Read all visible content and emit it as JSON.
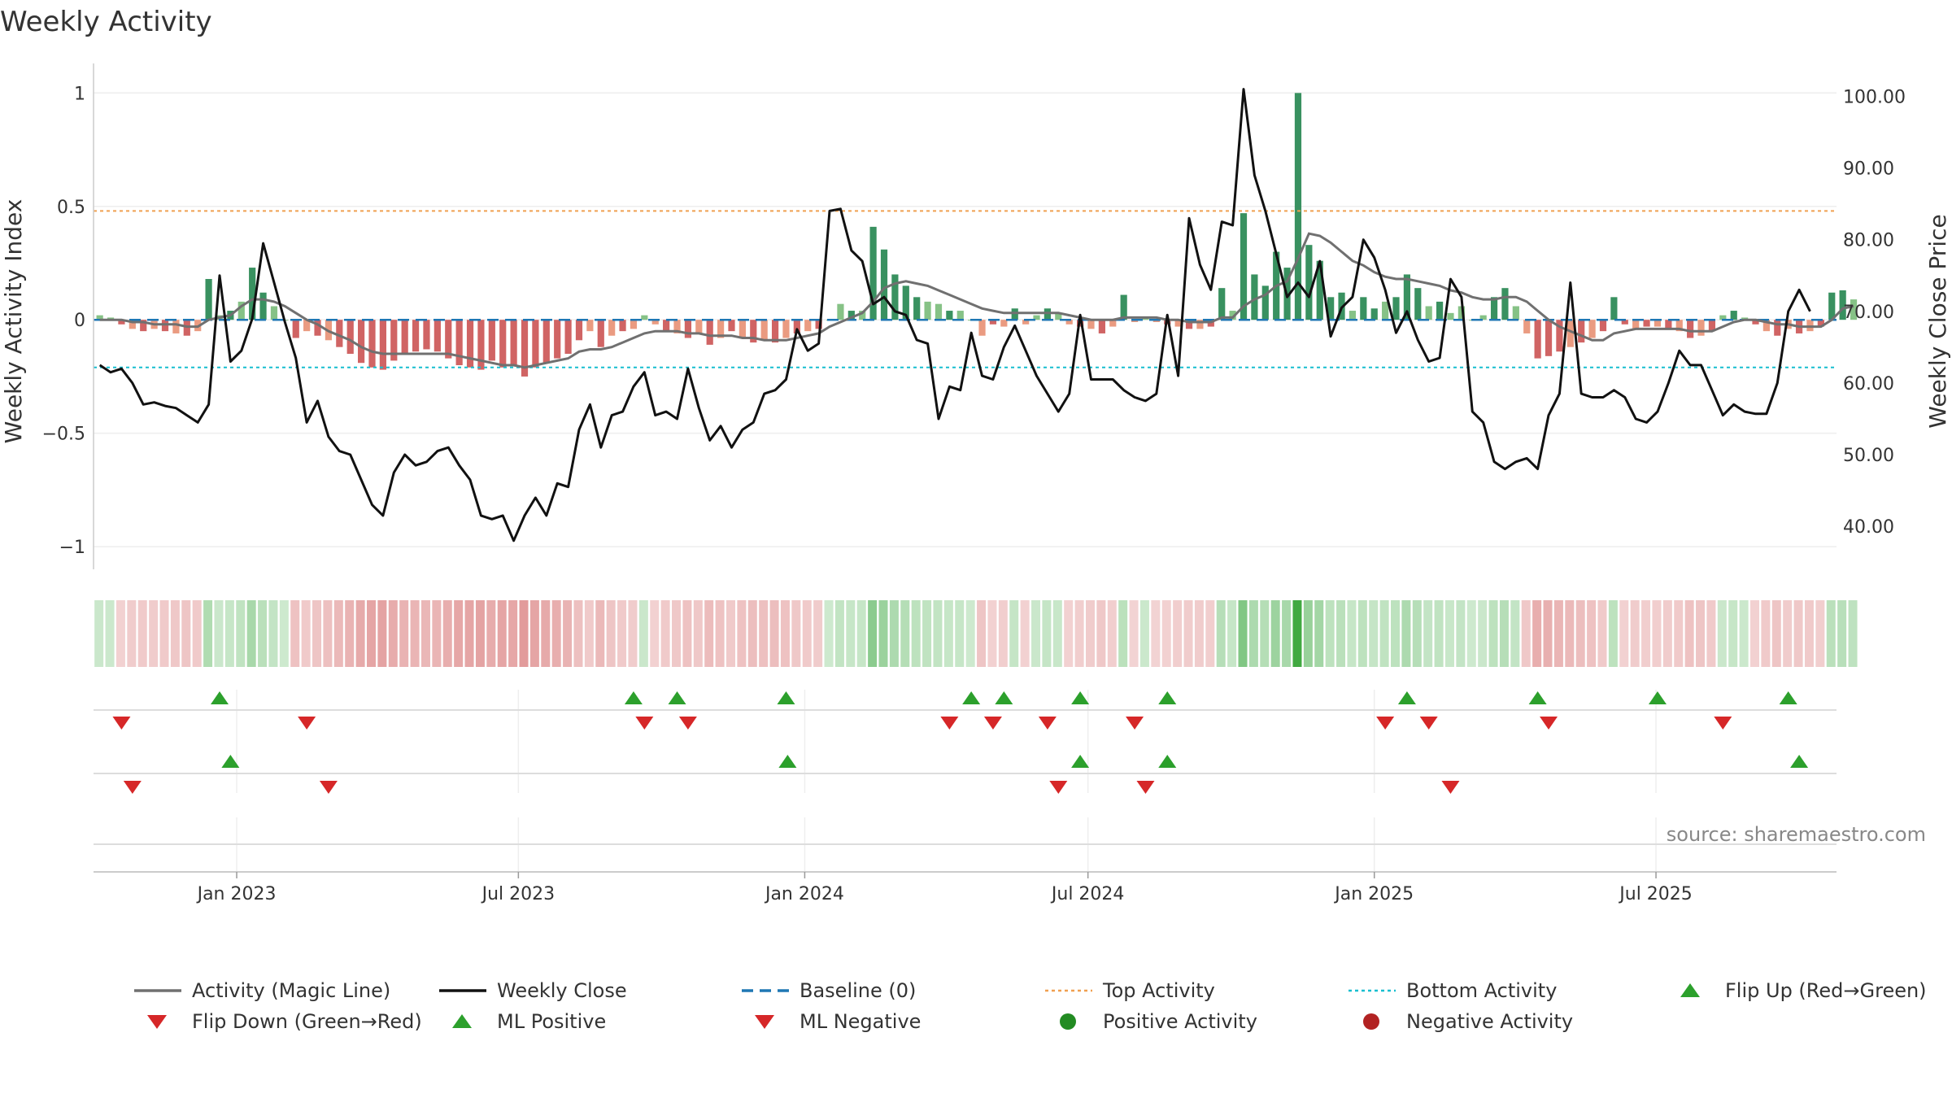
{
  "chart_data": {
    "type": "bar+line",
    "title": "Weekly Activity",
    "ylabel_left": "Weekly Activity Index",
    "ylabel_right": "Weekly Close Price",
    "ylim_left": [
      -1.1,
      1.08
    ],
    "yticks_left": [
      1,
      0.5,
      0,
      -0.5,
      -1
    ],
    "ytick_labels_left": [
      "1",
      "0.5",
      "0",
      "−0.5",
      "−1"
    ],
    "ylim_right": [
      34,
      103
    ],
    "yticks_right": [
      100,
      90,
      80,
      70,
      60,
      50,
      40
    ],
    "ytick_labels_right": [
      "100.00",
      "90.00",
      "80.00",
      "70.00",
      "60.00",
      "50.00",
      "40.00"
    ],
    "top_activity": 0.48,
    "bottom_activity": -0.21,
    "x_range": [
      "2022-10-01",
      "2025-10-25"
    ],
    "x_ticks": [
      {
        "date": "2023-01-01",
        "label": "Jan 2023"
      },
      {
        "date": "2023-07-01",
        "label": "Jul 2023"
      },
      {
        "date": "2024-01-01",
        "label": "Jan 2024"
      },
      {
        "date": "2024-07-01",
        "label": "Jul 2024"
      },
      {
        "date": "2025-01-01",
        "label": "Jan 2025"
      },
      {
        "date": "2025-07-01",
        "label": "Jul 2025"
      }
    ],
    "start_week": "2022-10-05",
    "activity": [
      0.02,
      0.01,
      -0.02,
      -0.04,
      -0.05,
      -0.04,
      -0.05,
      -0.06,
      -0.07,
      -0.05,
      0.18,
      0.02,
      0.04,
      0.08,
      0.23,
      0.12,
      0.06,
      0.0,
      -0.08,
      -0.05,
      -0.07,
      -0.09,
      -0.12,
      -0.15,
      -0.19,
      -0.21,
      -0.22,
      -0.18,
      -0.15,
      -0.14,
      -0.13,
      -0.14,
      -0.17,
      -0.2,
      -0.21,
      -0.22,
      -0.18,
      -0.21,
      -0.2,
      -0.25,
      -0.21,
      -0.19,
      -0.17,
      -0.15,
      -0.09,
      -0.05,
      -0.12,
      -0.07,
      -0.05,
      -0.04,
      0.02,
      -0.02,
      -0.05,
      -0.06,
      -0.08,
      -0.06,
      -0.11,
      -0.08,
      -0.05,
      -0.08,
      -0.1,
      -0.09,
      -0.1,
      -0.08,
      -0.06,
      -0.05,
      -0.04,
      0.0,
      0.07,
      0.04,
      0.04,
      0.41,
      0.31,
      0.2,
      0.15,
      0.1,
      0.08,
      0.07,
      0.04,
      0.04,
      0.0,
      -0.07,
      -0.02,
      -0.03,
      0.05,
      -0.02,
      0.02,
      0.05,
      0.03,
      -0.02,
      -0.03,
      -0.04,
      -0.06,
      -0.03,
      0.11,
      -0.01,
      0.01,
      -0.01,
      -0.02,
      -0.03,
      -0.04,
      -0.04,
      -0.03,
      0.14,
      0.04,
      0.47,
      0.2,
      0.15,
      0.3,
      0.23,
      1.0,
      0.33,
      0.26,
      0.1,
      0.12,
      0.04,
      0.1,
      0.05,
      0.08,
      0.1,
      0.2,
      0.14,
      0.06,
      0.08,
      0.03,
      0.06,
      0.0,
      0.02,
      0.1,
      0.14,
      0.06,
      -0.06,
      -0.17,
      -0.16,
      -0.14,
      -0.12,
      -0.1,
      -0.08,
      -0.05,
      0.1,
      -0.02,
      -0.04,
      -0.03,
      -0.03,
      -0.04,
      -0.05,
      -0.08,
      -0.07,
      -0.05,
      0.02,
      0.04,
      0.01,
      -0.02,
      -0.05,
      -0.07,
      -0.04,
      -0.06,
      -0.05,
      -0.03,
      0.12,
      0.13,
      0.09
    ],
    "magic_line": [
      0.0,
      0.0,
      0.0,
      -0.01,
      -0.01,
      -0.02,
      -0.02,
      -0.02,
      -0.03,
      -0.03,
      0.0,
      0.01,
      0.02,
      0.06,
      0.09,
      0.09,
      0.08,
      0.06,
      0.03,
      0.0,
      -0.02,
      -0.05,
      -0.07,
      -0.09,
      -0.12,
      -0.14,
      -0.15,
      -0.15,
      -0.15,
      -0.15,
      -0.15,
      -0.15,
      -0.15,
      -0.16,
      -0.17,
      -0.18,
      -0.19,
      -0.2,
      -0.2,
      -0.21,
      -0.2,
      -0.19,
      -0.18,
      -0.17,
      -0.14,
      -0.13,
      -0.13,
      -0.12,
      -0.1,
      -0.08,
      -0.06,
      -0.05,
      -0.05,
      -0.05,
      -0.06,
      -0.06,
      -0.07,
      -0.07,
      -0.07,
      -0.08,
      -0.08,
      -0.09,
      -0.09,
      -0.09,
      -0.08,
      -0.07,
      -0.06,
      -0.03,
      -0.01,
      0.01,
      0.03,
      0.08,
      0.14,
      0.16,
      0.17,
      0.16,
      0.15,
      0.13,
      0.11,
      0.09,
      0.07,
      0.05,
      0.04,
      0.03,
      0.03,
      0.03,
      0.03,
      0.03,
      0.03,
      0.02,
      0.01,
      0.0,
      0.0,
      0.0,
      0.01,
      0.01,
      0.01,
      0.01,
      0.0,
      0.0,
      -0.01,
      -0.01,
      -0.01,
      0.01,
      0.01,
      0.06,
      0.09,
      0.11,
      0.15,
      0.17,
      0.27,
      0.38,
      0.37,
      0.34,
      0.3,
      0.26,
      0.24,
      0.21,
      0.19,
      0.18,
      0.18,
      0.17,
      0.16,
      0.15,
      0.13,
      0.12,
      0.1,
      0.09,
      0.09,
      0.1,
      0.1,
      0.08,
      0.04,
      0.0,
      -0.03,
      -0.05,
      -0.07,
      -0.09,
      -0.09,
      -0.06,
      -0.05,
      -0.04,
      -0.04,
      -0.04,
      -0.04,
      -0.04,
      -0.05,
      -0.05,
      -0.05,
      -0.03,
      -0.01,
      0.0,
      0.0,
      -0.01,
      -0.02,
      -0.02,
      -0.03,
      -0.03,
      -0.03,
      0.0,
      0.05,
      0.06
    ],
    "close": [
      62.5,
      61.5,
      62.0,
      60.0,
      57.0,
      57.3,
      56.8,
      56.5,
      55.5,
      54.5,
      57.0,
      75.0,
      63.0,
      64.5,
      69.0,
      79.5,
      74.0,
      68.5,
      63.5,
      54.5,
      57.5,
      52.5,
      50.5,
      50.0,
      46.5,
      43.0,
      41.5,
      47.5,
      50.0,
      48.5,
      49.0,
      50.5,
      51.0,
      48.5,
      46.5,
      41.5,
      41.0,
      41.5,
      38.0,
      41.5,
      44.0,
      41.5,
      46.0,
      45.5,
      53.5,
      57.0,
      51.0,
      55.5,
      56.0,
      59.5,
      61.5,
      55.5,
      56.0,
      55.0,
      62.0,
      56.5,
      52.0,
      54.0,
      51.0,
      53.5,
      54.5,
      58.5,
      59.0,
      60.5,
      67.5,
      64.5,
      65.5,
      84.0,
      84.3,
      78.5,
      77.0,
      71.0,
      72.0,
      70.0,
      69.5,
      66.0,
      65.5,
      55.0,
      59.5,
      59.0,
      67.0,
      61.0,
      60.5,
      65.0,
      68.0,
      64.5,
      61.0,
      58.5,
      56.0,
      58.5,
      69.5,
      60.5,
      60.5,
      60.5,
      59.0,
      58.0,
      57.5,
      58.5,
      69.5,
      61.0,
      83.0,
      76.5,
      73.0,
      82.5,
      82.0,
      101.0,
      89.0,
      84.0,
      78.0,
      72.0,
      74.0,
      72.0,
      77.0,
      66.5,
      70.5,
      72.0,
      80.0,
      77.5,
      73.0,
      67.0,
      70.0,
      66.0,
      63.0,
      63.5,
      74.5,
      72.0,
      56.0,
      54.5,
      49.0,
      48.0,
      49.0,
      49.5,
      48.0,
      55.5,
      58.5,
      74.0,
      58.5,
      58.0,
      58.0,
      59.0,
      58.0,
      55.0,
      54.5,
      56.0,
      60.0,
      64.5,
      62.5,
      62.5,
      59.0,
      55.5,
      57.0,
      56.0,
      55.7,
      55.7,
      60.0,
      70.0,
      73.0,
      70.0
    ],
    "flip_up_1": [
      "2022-12-21",
      "2023-09-13",
      "2023-10-11",
      "2023-12-20",
      "2024-04-17",
      "2024-05-08",
      "2024-06-26",
      "2024-08-21",
      "2025-01-22",
      "2025-04-16",
      "2025-07-02",
      "2025-09-24"
    ],
    "flip_down_1": [
      "2022-10-19",
      "2023-02-15",
      "2023-09-20",
      "2023-10-18",
      "2024-04-03",
      "2024-05-01",
      "2024-06-05",
      "2024-07-31",
      "2025-01-08",
      "2025-02-05",
      "2025-04-23",
      "2025-08-13"
    ],
    "flip_up_2": [
      "2022-12-28",
      "2023-12-21",
      "2024-06-26",
      "2024-08-21",
      "2025-10-01"
    ],
    "flip_down_2": [
      "2022-10-26",
      "2023-03-01",
      "2024-06-12",
      "2024-08-07",
      "2025-02-19"
    ],
    "source": "source: sharemaestro.com",
    "legend": [
      {
        "label": "Activity (Magic Line)",
        "kind": "line",
        "color": "#707070",
        "dash": ""
      },
      {
        "label": "Weekly Close",
        "kind": "line",
        "color": "#111111",
        "dash": ""
      },
      {
        "label": "Baseline (0)",
        "kind": "line",
        "color": "#1f77b4",
        "dash": "14 8"
      },
      {
        "label": "Top Activity",
        "kind": "line",
        "color": "#f0a050",
        "dash": "4 4"
      },
      {
        "label": "Bottom Activity",
        "kind": "line",
        "color": "#17becf",
        "dash": "4 4"
      },
      {
        "label": "Flip Up (Red→Green)",
        "kind": "up",
        "color": "#2ca02c"
      },
      {
        "label": "Flip Down (Green→Red)",
        "kind": "down",
        "color": "#d62728"
      },
      {
        "label": "ML Positive",
        "kind": "up",
        "color": "#2ca02c"
      },
      {
        "label": "ML Negative",
        "kind": "down",
        "color": "#d62728"
      },
      {
        "label": "Positive Activity",
        "kind": "dot",
        "color": "#228b22"
      },
      {
        "label": "Negative Activity",
        "kind": "dot",
        "color": "#b22222"
      }
    ],
    "colors": {
      "pos_dark": "#2e8b57",
      "pos_light": "#7fbf7f",
      "neg_dark": "#cd5c5c",
      "neg_light": "#e9967a",
      "up_marker": "#2ca02c",
      "down_marker": "#d62728"
    }
  }
}
